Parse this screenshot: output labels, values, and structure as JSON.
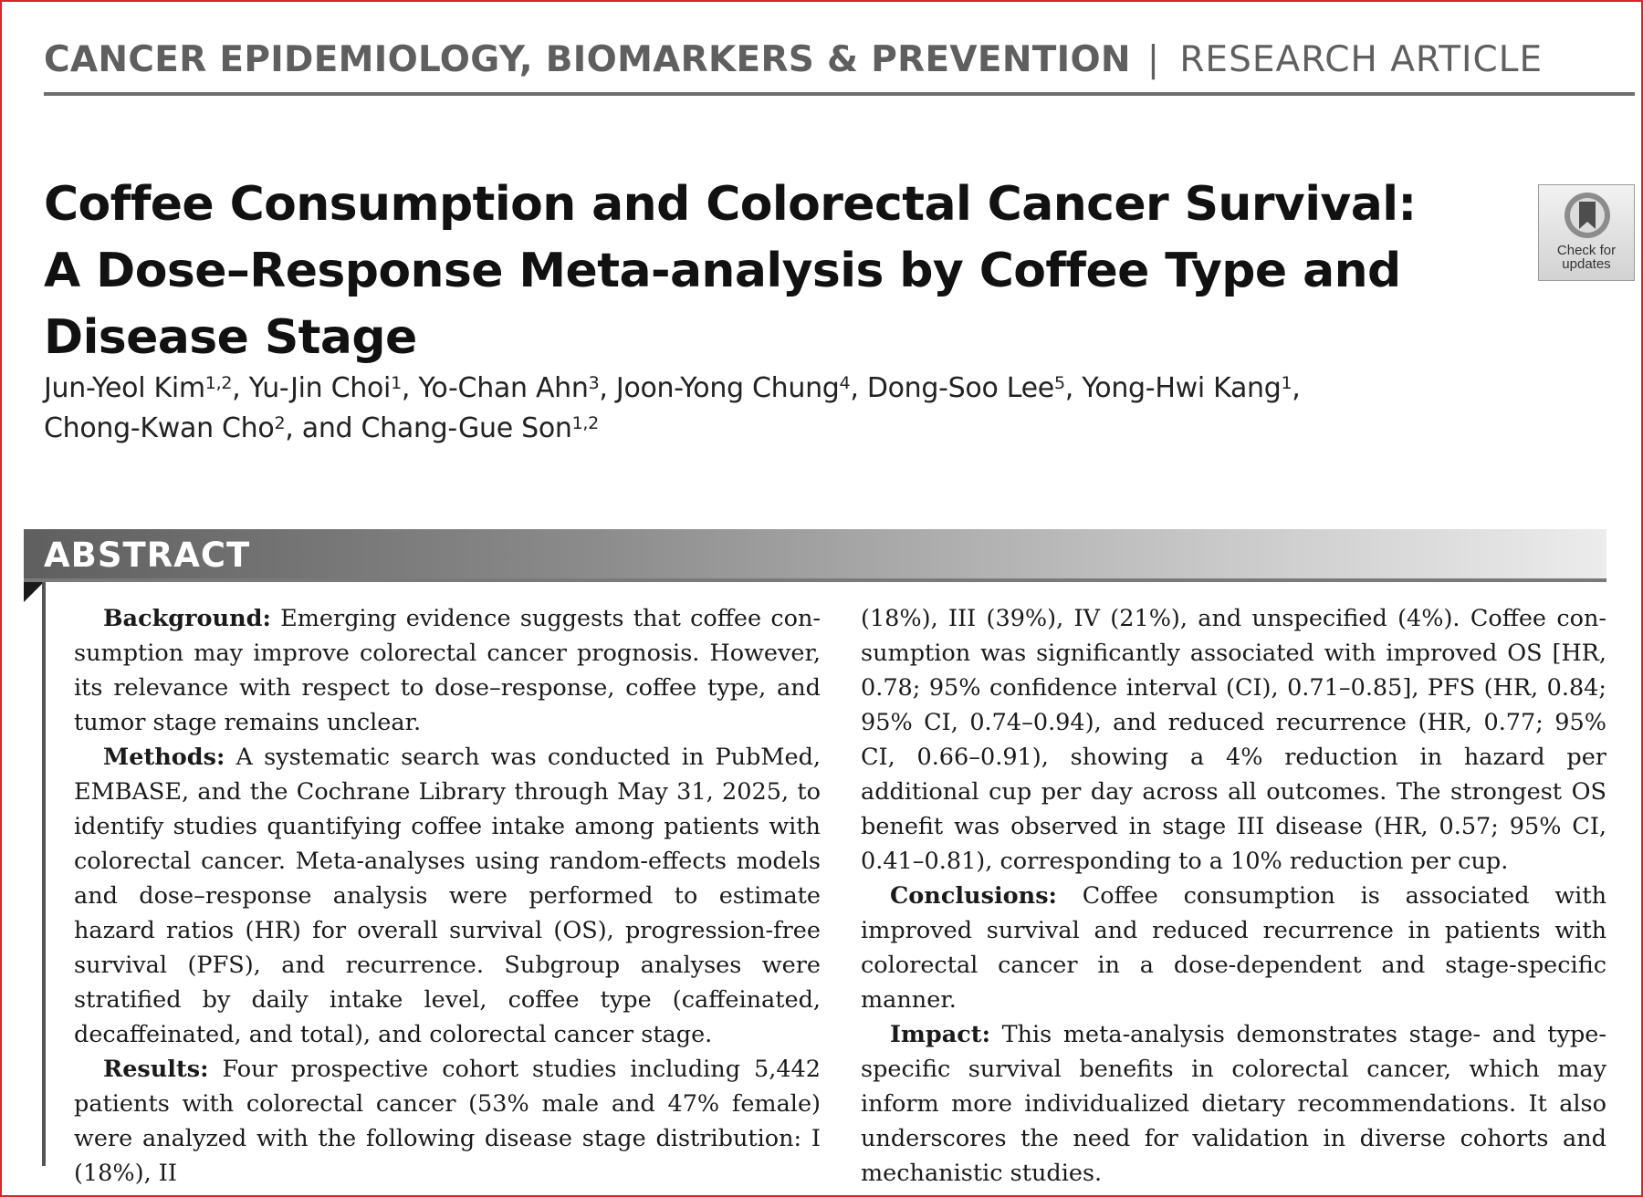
{
  "running_header": {
    "journal": "CANCER EPIDEMIOLOGY, BIOMARKERS & PREVENTION",
    "separator": "|",
    "article_type": "RESEARCH ARTICLE"
  },
  "title_lines": [
    "Coffee Consumption and Colorectal Cancer Survival:",
    "A Dose–Response Meta-analysis by Coffee Type and",
    "Disease Stage"
  ],
  "badge": {
    "line1": "Check for",
    "line2": "updates",
    "icon": "bookmark-circle-icon"
  },
  "authors": [
    {
      "name": "Jun-Yeol Kim",
      "aff": "1,2",
      "after": ", "
    },
    {
      "name": "Yu-Jin Choi",
      "aff": "1",
      "after": ", "
    },
    {
      "name": "Yo-Chan Ahn",
      "aff": "3",
      "after": ", "
    },
    {
      "name": "Joon-Yong Chung",
      "aff": "4",
      "after": ", "
    },
    {
      "name": "Dong-Soo Lee",
      "aff": "5",
      "after": ", "
    },
    {
      "name": "Yong-Hwi Kang",
      "aff": "1",
      "after": ","
    },
    {
      "name": "Chong-Kwan Cho",
      "aff": "2",
      "after": ", "
    },
    {
      "name": "and Chang-Gue Son",
      "aff": "1,2",
      "after": ""
    }
  ],
  "abstract": {
    "heading": "ABSTRACT",
    "background": {
      "label": "Background:",
      "text": " Emerging evidence suggests that coffee con­sumption may improve colorectal cancer prognosis. However, its relevance with respect to dose–response, coffee type, and tumor stage remains unclear."
    },
    "methods": {
      "label": "Methods:",
      "text": " A systematic search was conducted in PubMed, EMBASE, and the Cochrane Library through May 31, 2025, to identify studies quantifying coffee intake among patients with colorectal cancer. Meta-analyses using random-effects models and dose–response analysis were performed to estimate hazard ratios (HR) for overall survival (OS), progression-free survival (PFS), and recurrence. Subgroup analyses were stratified by daily intake level, coffee type (caffeinated, decaffeinated, and total), and colorectal cancer stage."
    },
    "results": {
      "label": "Results:",
      "text_left": " Four prospective cohort studies including 5,442 pa­tients with colorectal cancer (53% male and 47% female) were analyzed with the following disease stage distribution: I (18%), II",
      "text_right": "(18%), III (39%), IV (21%), and unspecified (4%). Coffee con­sumption was significantly associated with improved OS [HR, 0.78; 95% confidence interval (CI), 0.71–0.85], PFS (HR, 0.84; 95% CI, 0.74–0.94), and reduced recurrence (HR, 0.77; 95% CI, 0.66–0.91), showing a 4% reduction in hazard per additional cup per day across all outcomes. The strongest OS benefit was ob­served in stage III disease (HR, 0.57; 95% CI, 0.41–0.81), corre­sponding to a 10% reduction per cup."
    },
    "conclusions": {
      "label": "Conclusions:",
      "text": " Coffee consumption is associated with improved survival and reduced recurrence in patients with colorectal cancer in a dose-dependent and stage-specific manner."
    },
    "impact": {
      "label": "Impact:",
      "text": " This meta-analysis demonstrates stage- and type-specific survival benefits in colorectal cancer, which may inform more individualized dietary recommendations. It also under­scores the need for validation in diverse cohorts and mechanistic studies."
    }
  }
}
